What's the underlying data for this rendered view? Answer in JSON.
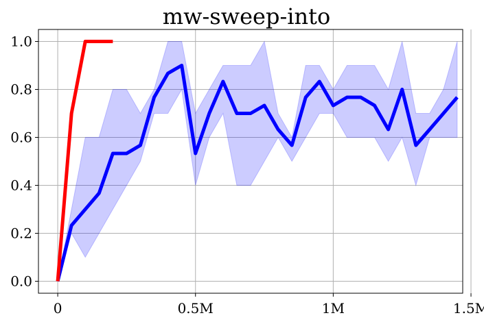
{
  "chart_data": {
    "type": "line",
    "title": "mw-sweep-into",
    "xlabel": "",
    "ylabel": "",
    "xlim": [
      -70000,
      1470000
    ],
    "ylim": [
      -0.05,
      1.05
    ],
    "grid": true,
    "x_ticks": [
      {
        "value": 0,
        "label": "0"
      },
      {
        "value": 500000,
        "label": "0.5M"
      },
      {
        "value": 1000000,
        "label": "1M"
      },
      {
        "value": 1500000,
        "label": "1.5M"
      }
    ],
    "y_ticks": [
      {
        "value": 0.0,
        "label": "0.0"
      },
      {
        "value": 0.2,
        "label": "0.2"
      },
      {
        "value": 0.4,
        "label": "0.4"
      },
      {
        "value": 0.6,
        "label": "0.6"
      },
      {
        "value": 0.8,
        "label": "0.8"
      },
      {
        "value": 1.0,
        "label": "1.0"
      }
    ],
    "series": [
      {
        "color": "#0000ff",
        "band_color": "#0000ff",
        "x": [
          0,
          50000,
          100000,
          150000,
          200000,
          250000,
          300000,
          350000,
          400000,
          450000,
          500000,
          550000,
          600000,
          650000,
          700000,
          750000,
          800000,
          850000,
          900000,
          950000,
          1000000,
          1050000,
          1100000,
          1150000,
          1200000,
          1250000,
          1300000,
          1350000,
          1400000,
          1450000
        ],
        "values": [
          0.0,
          0.233,
          0.3,
          0.367,
          0.533,
          0.533,
          0.567,
          0.767,
          0.867,
          0.9,
          0.533,
          0.7,
          0.833,
          0.7,
          0.7,
          0.733,
          0.633,
          0.567,
          0.767,
          0.833,
          0.733,
          0.767,
          0.767,
          0.733,
          0.633,
          0.8,
          0.567,
          0.633,
          0.7,
          0.767
        ],
        "lower": [
          0.0,
          0.2,
          0.1,
          0.2,
          0.3,
          0.4,
          0.5,
          0.7,
          0.7,
          0.8,
          0.4,
          0.6,
          0.7,
          0.4,
          0.4,
          0.5,
          0.6,
          0.5,
          0.6,
          0.7,
          0.7,
          0.6,
          0.6,
          0.6,
          0.5,
          0.6,
          0.4,
          0.6,
          0.6,
          0.6
        ],
        "upper": [
          0.0,
          0.3,
          0.6,
          0.6,
          0.8,
          0.8,
          0.7,
          0.8,
          1.0,
          1.0,
          0.7,
          0.8,
          0.9,
          0.9,
          0.9,
          1.0,
          0.7,
          0.6,
          0.9,
          0.9,
          0.8,
          0.9,
          0.9,
          0.9,
          0.8,
          1.0,
          0.7,
          0.7,
          0.8,
          1.0
        ]
      },
      {
        "color": "#ff0000",
        "x": [
          0,
          50000,
          100000,
          150000,
          200000
        ],
        "values": [
          0.0,
          0.7,
          1.0,
          1.0,
          1.0
        ]
      }
    ]
  }
}
